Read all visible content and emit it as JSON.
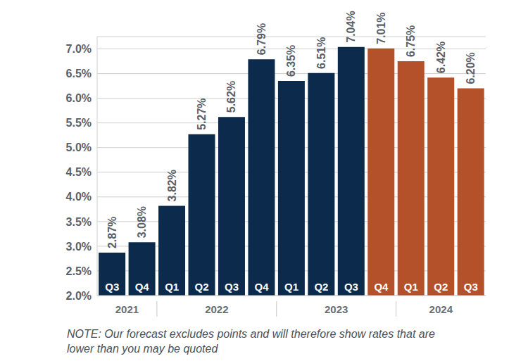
{
  "chart_data": {
    "type": "bar",
    "categories": [
      "Q3",
      "Q4",
      "Q1",
      "Q2",
      "Q3",
      "Q4",
      "Q1",
      "Q2",
      "Q3",
      "Q4",
      "Q1",
      "Q2",
      "Q3"
    ],
    "years": [
      "2021",
      "2021",
      "2022",
      "2022",
      "2022",
      "2022",
      "2023",
      "2023",
      "2023",
      "2023",
      "2024",
      "2024",
      "2024"
    ],
    "values": [
      2.87,
      3.08,
      3.82,
      5.27,
      5.62,
      6.79,
      6.35,
      6.51,
      7.04,
      7.01,
      6.75,
      6.42,
      6.2
    ],
    "value_labels": [
      "2.87%",
      "3.08%",
      "3.82%",
      "5.27%",
      "5.62%",
      "6.79%",
      "6.35%",
      "6.51%",
      "7.04%",
      "7.01%",
      "6.75%",
      "6.42%",
      "6.20%"
    ],
    "colors": [
      "#0c2a4b",
      "#0c2a4b",
      "#0c2a4b",
      "#0c2a4b",
      "#0c2a4b",
      "#0c2a4b",
      "#0c2a4b",
      "#0c2a4b",
      "#0c2a4b",
      "#b5512a",
      "#b5512a",
      "#b5512a",
      "#b5512a"
    ],
    "ylim": [
      2,
      7.25
    ],
    "yticks": [
      {
        "value": 2,
        "label": "2.0%"
      },
      {
        "value": 2.5,
        "label": "2.5%"
      },
      {
        "value": 3,
        "label": "3.0%"
      },
      {
        "value": 3.5,
        "label": "3.5%"
      },
      {
        "value": 4,
        "label": "4.0%"
      },
      {
        "value": 4.5,
        "label": "4.5%"
      },
      {
        "value": 5,
        "label": "5.0%"
      },
      {
        "value": 5.5,
        "label": "5.5%"
      },
      {
        "value": 6,
        "label": "6.0%"
      },
      {
        "value": 6.5,
        "label": "6.5%"
      },
      {
        "value": 7,
        "label": "7.0%"
      }
    ],
    "grid": true,
    "data_labels": true,
    "annotation": "NOTE: Our forecast excludes points and will therefore show rates that are lower than you may be quoted"
  }
}
